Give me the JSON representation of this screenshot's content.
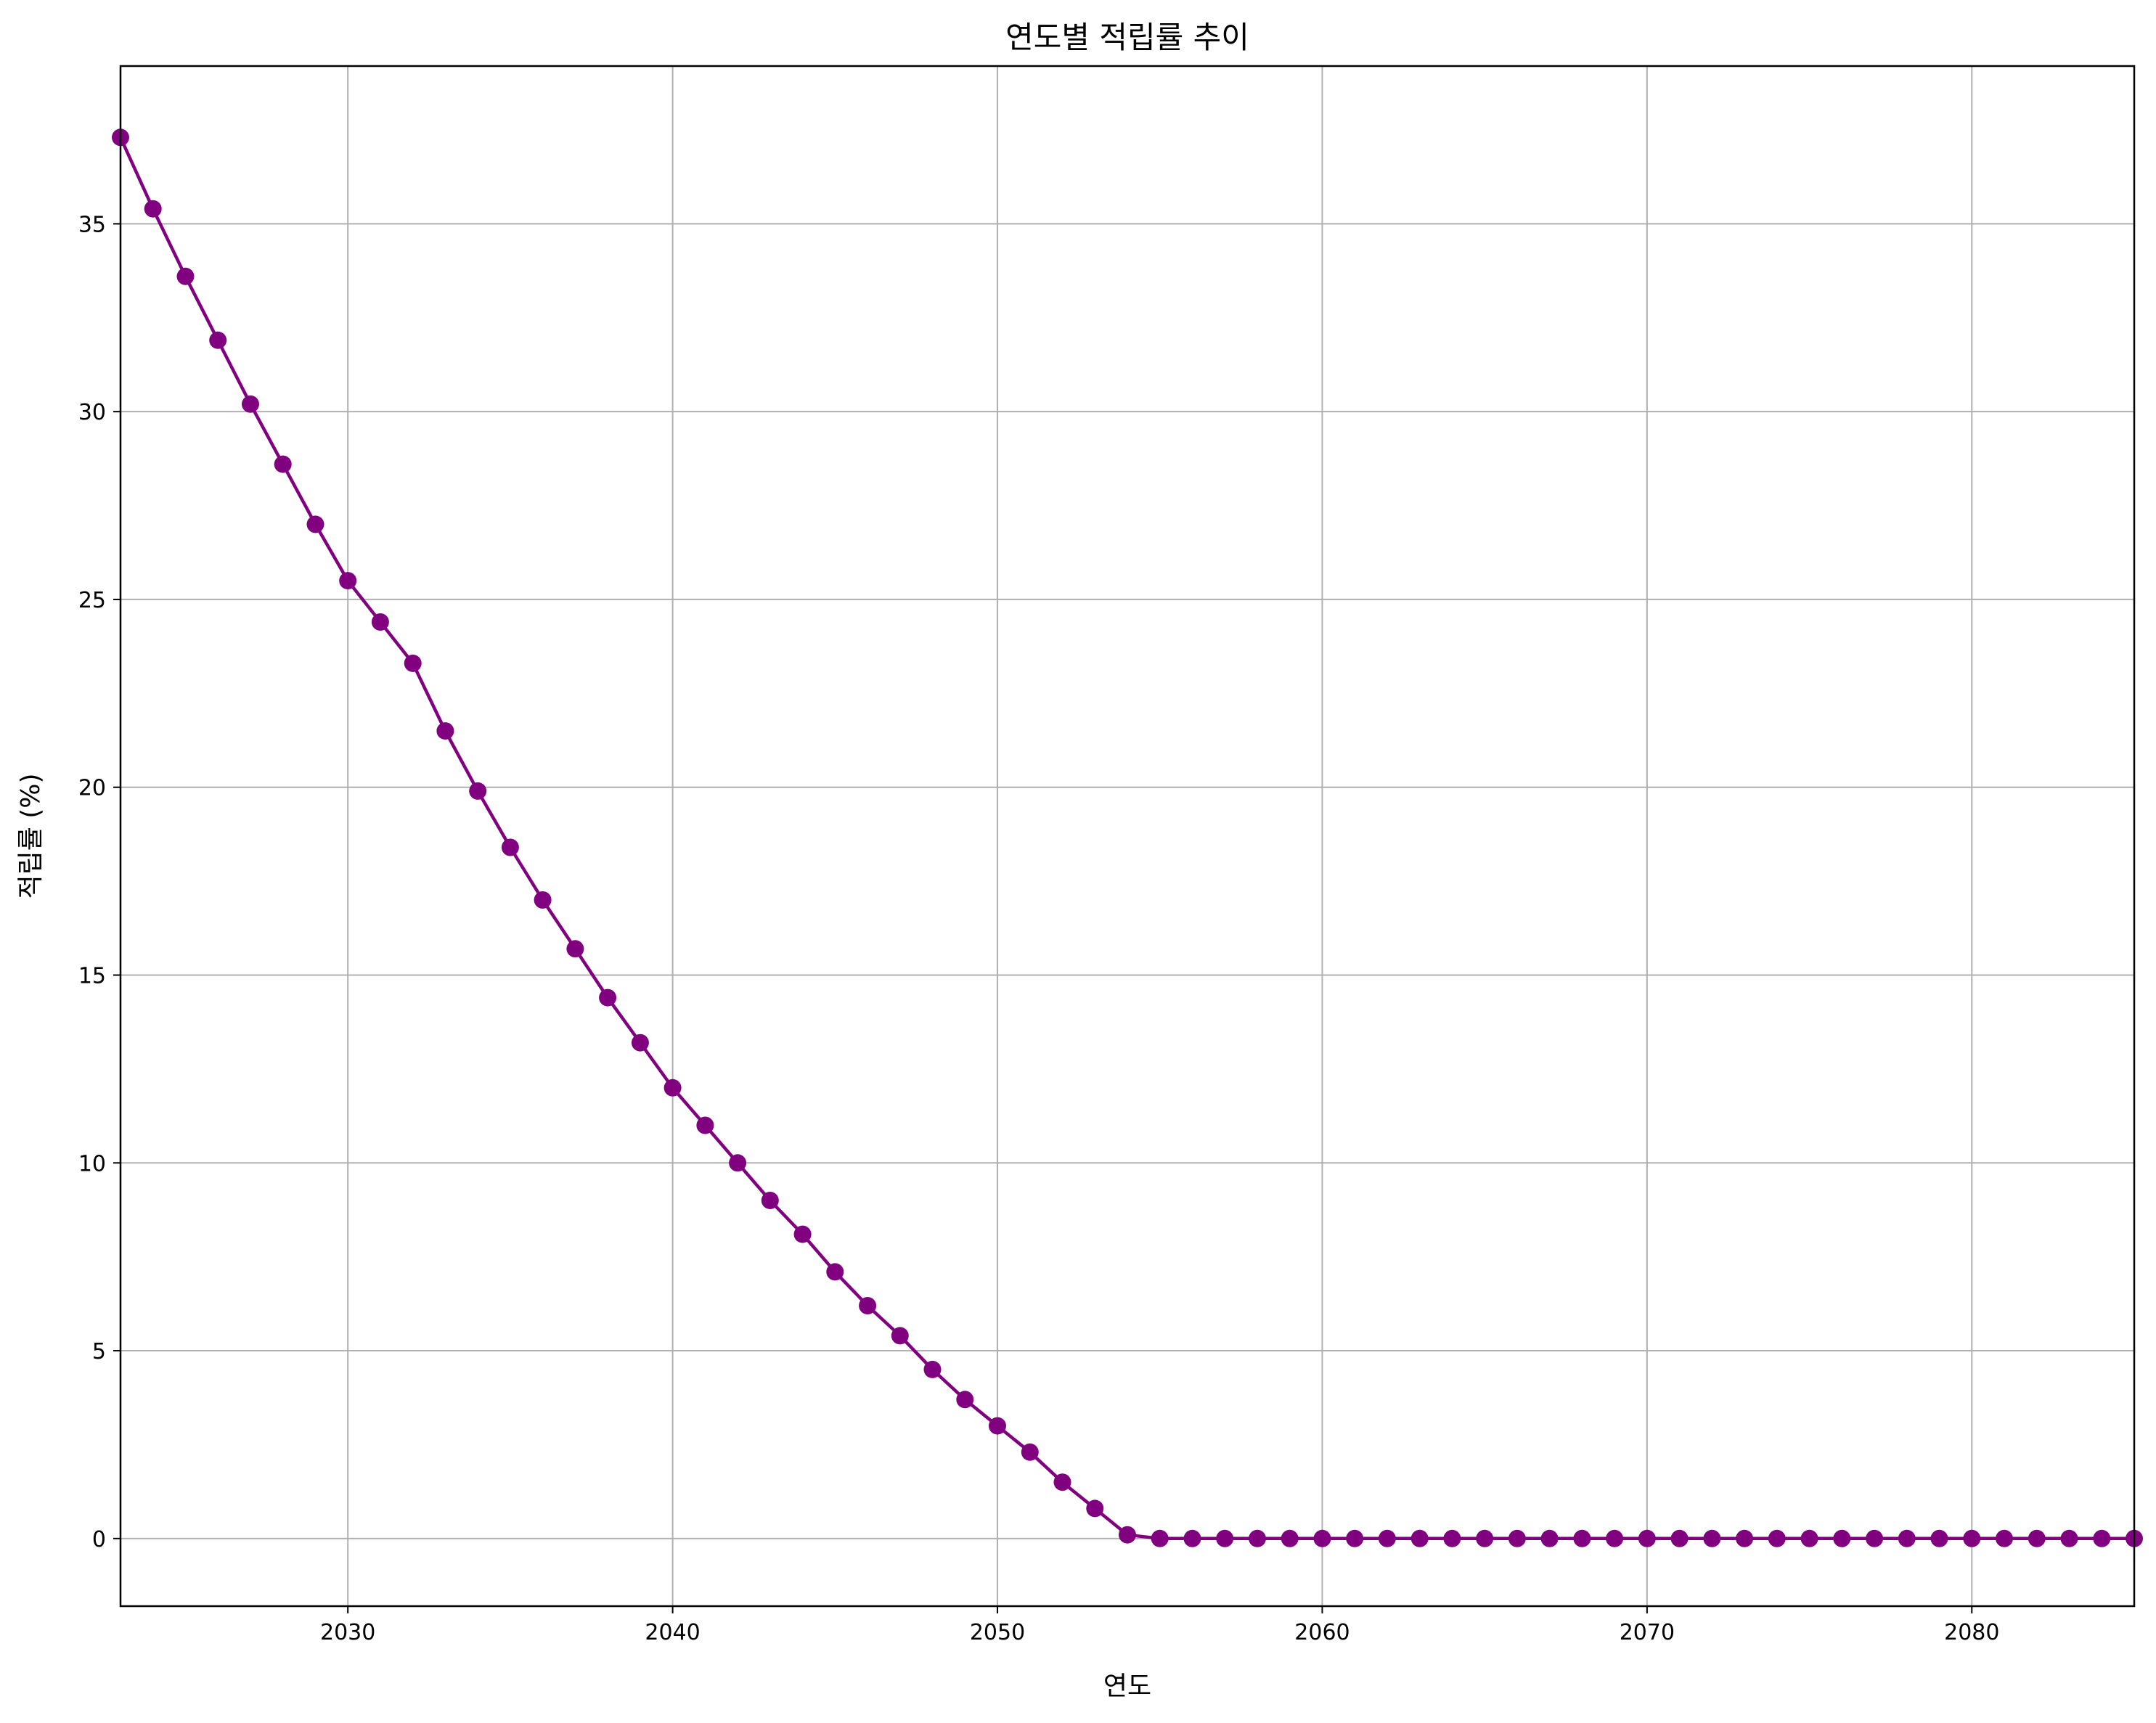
{
  "chart_data": {
    "type": "line",
    "title": "연도별 적립률 추이",
    "xlabel": "연도",
    "ylabel": "적립률 (%)",
    "xlim": [
      2023,
      2085
    ],
    "ylim": [
      -1.8,
      39.2
    ],
    "xticks": [
      2030,
      2040,
      2050,
      2060,
      2070,
      2080
    ],
    "yticks": [
      0,
      5,
      10,
      15,
      20,
      25,
      30,
      35
    ],
    "grid": true,
    "color": "#800080",
    "marker": "circle",
    "x": [
      2023,
      2024,
      2025,
      2026,
      2027,
      2028,
      2029,
      2030,
      2031,
      2032,
      2033,
      2034,
      2035,
      2036,
      2037,
      2038,
      2039,
      2040,
      2041,
      2042,
      2043,
      2044,
      2045,
      2046,
      2047,
      2048,
      2049,
      2050,
      2051,
      2052,
      2053,
      2054,
      2055,
      2056,
      2057,
      2058,
      2059,
      2060,
      2061,
      2062,
      2063,
      2064,
      2065,
      2066,
      2067,
      2068,
      2069,
      2070,
      2071,
      2072,
      2073,
      2074,
      2075,
      2076,
      2077,
      2078,
      2079,
      2080,
      2081,
      2082,
      2083,
      2084,
      2085
    ],
    "y": [
      37.3,
      35.4,
      33.6,
      31.9,
      30.2,
      28.6,
      27.0,
      25.5,
      24.4,
      23.3,
      21.5,
      19.9,
      18.4,
      17.0,
      15.7,
      14.4,
      13.2,
      12.0,
      11.0,
      10.0,
      9.0,
      8.1,
      7.1,
      6.2,
      5.4,
      4.5,
      3.7,
      3.0,
      2.3,
      1.5,
      0.8,
      0.1,
      0.0,
      0.0,
      0.0,
      0.0,
      0.0,
      0.0,
      0.0,
      0.0,
      0.0,
      0.0,
      0.0,
      0.0,
      0.0,
      0.0,
      0.0,
      0.0,
      0.0,
      0.0,
      0.0,
      0.0,
      0.0,
      0.0,
      0.0,
      0.0,
      0.0,
      0.0,
      0.0,
      0.0,
      0.0,
      0.0,
      0.0
    ]
  }
}
